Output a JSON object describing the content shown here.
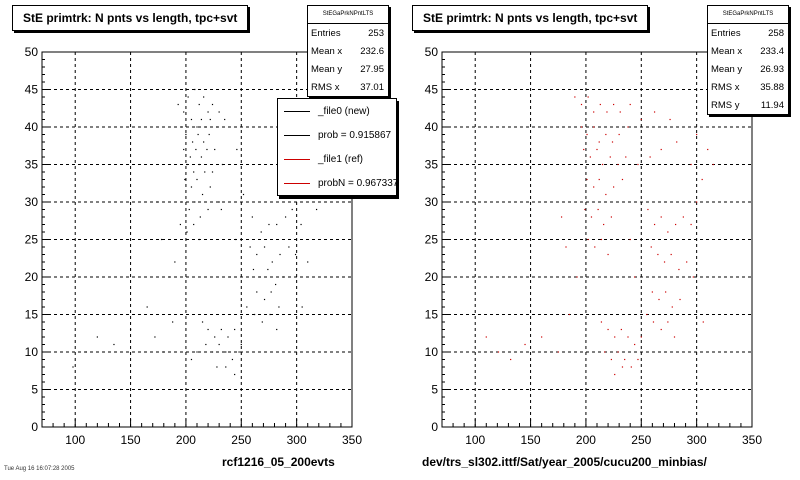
{
  "panels": [
    {
      "title": "StE primtrk: N pnts vs length, tpc+svt",
      "stats": {
        "name": "StEGaPrkNPntLTS",
        "rows": [
          {
            "label": "Entries",
            "value": "253"
          },
          {
            "label": "Mean x",
            "value": "232.6"
          },
          {
            "label": "Mean y",
            "value": "27.95"
          },
          {
            "label": "RMS x",
            "value": "37.01"
          }
        ]
      },
      "legend": [
        {
          "label": "_file0 (new)",
          "color": "#000000"
        },
        {
          "label": "prob = 0.915867",
          "color": "#000000"
        },
        {
          "label": "_file1 (ref)",
          "color": "#cc0000"
        },
        {
          "label": "probN = 0.967337",
          "color": "#cc0000"
        }
      ],
      "footer": "rcf1216_05_200evts"
    },
    {
      "title": "StE primtrk: N pnts vs length, tpc+svt",
      "stats": {
        "name": "StEGaPrkNPntLTS",
        "rows": [
          {
            "label": "Entries",
            "value": "258"
          },
          {
            "label": "Mean x",
            "value": "233.4"
          },
          {
            "label": "Mean y",
            "value": "26.93"
          },
          {
            "label": "RMS x",
            "value": "35.88"
          },
          {
            "label": "RMS y",
            "value": "11.94"
          }
        ]
      },
      "footer": "dev/trs_sl302.ittf/Sat/year_2005/cucu200_minbias/"
    }
  ],
  "corner_note": "Tue Aug 16 16:07:28 2005",
  "chart_data": [
    {
      "type": "scatter",
      "title": "StE primtrk: N pnts vs length, tpc+svt",
      "xlabel": "",
      "ylabel": "",
      "xlim": [
        70,
        350
      ],
      "ylim": [
        0,
        50
      ],
      "xticks": [
        100,
        150,
        200,
        250,
        300,
        350
      ],
      "yticks": [
        0,
        5,
        10,
        15,
        20,
        25,
        30,
        35,
        40,
        45,
        50
      ],
      "grid": true,
      "series": [
        {
          "color": "#000000",
          "points": [
            [
              193,
              43
            ],
            [
              198,
              42
            ],
            [
              202,
              44
            ],
            [
              208,
              45
            ],
            [
              212,
              43
            ],
            [
              216,
              44
            ],
            [
              220,
              42
            ],
            [
              224,
              43
            ],
            [
              230,
              42
            ],
            [
              205,
              41
            ],
            [
              210,
              40
            ],
            [
              214,
              41
            ],
            [
              218,
              40
            ],
            [
              222,
              41
            ],
            [
              196,
              40
            ],
            [
              200,
              39
            ],
            [
              206,
              38
            ],
            [
              211,
              39
            ],
            [
              216,
              38
            ],
            [
              221,
              39
            ],
            [
              228,
              40
            ],
            [
              235,
              41
            ],
            [
              198,
              37
            ],
            [
              204,
              36
            ],
            [
              209,
              37
            ],
            [
              214,
              36
            ],
            [
              219,
              37
            ],
            [
              226,
              37
            ],
            [
              201,
              35
            ],
            [
              207,
              34
            ],
            [
              212,
              35
            ],
            [
              217,
              34
            ],
            [
              224,
              34
            ],
            [
              233,
              35
            ],
            [
              246,
              37
            ],
            [
              199,
              33
            ],
            [
              205,
              32
            ],
            [
              210,
              33
            ],
            [
              215,
              31
            ],
            [
              222,
              32
            ],
            [
              196,
              30
            ],
            [
              203,
              29
            ],
            [
              208,
              30
            ],
            [
              213,
              28
            ],
            [
              220,
              29
            ],
            [
              230,
              30
            ],
            [
              195,
              27
            ],
            [
              201,
              26
            ],
            [
              207,
              27
            ],
            [
              212,
              25
            ],
            [
              232,
              29
            ],
            [
              252,
              31
            ],
            [
              260,
              28
            ],
            [
              268,
              26
            ],
            [
              275,
              27
            ],
            [
              282,
              27
            ],
            [
              290,
              28
            ],
            [
              296,
              29
            ],
            [
              304,
              27
            ],
            [
              258,
              24
            ],
            [
              264,
              23
            ],
            [
              271,
              24
            ],
            [
              278,
              22
            ],
            [
              285,
              23
            ],
            [
              293,
              24
            ],
            [
              299,
              23
            ],
            [
              261,
              21
            ],
            [
              267,
              20
            ],
            [
              274,
              21
            ],
            [
              281,
              19
            ],
            [
              288,
              20
            ],
            [
              264,
              18
            ],
            [
              271,
              17
            ],
            [
              277,
              18
            ],
            [
              284,
              16
            ],
            [
              255,
              16
            ],
            [
              262,
              15
            ],
            [
              269,
              14
            ],
            [
              276,
              15
            ],
            [
              282,
              13
            ],
            [
              215,
              14
            ],
            [
              220,
              13
            ],
            [
              226,
              12
            ],
            [
              232,
              13
            ],
            [
              238,
              12
            ],
            [
              244,
              13
            ],
            [
              250,
              11
            ],
            [
              218,
              11
            ],
            [
              224,
              10
            ],
            [
              230,
              11
            ],
            [
              236,
              10
            ],
            [
              242,
              9
            ],
            [
              248,
              10
            ],
            [
              228,
              8
            ],
            [
              236,
              8
            ],
            [
              244,
              7
            ],
            [
              210,
              10
            ],
            [
              205,
              9
            ],
            [
              120,
              12
            ],
            [
              135,
              11
            ],
            [
              150,
              13
            ],
            [
              165,
              16
            ],
            [
              172,
              12
            ],
            [
              180,
              10
            ],
            [
              188,
              14
            ],
            [
              98,
              8
            ],
            [
              110,
              10
            ],
            [
              185,
              20
            ],
            [
              178,
              25
            ],
            [
              174,
              30
            ],
            [
              190,
              22
            ],
            [
              240,
              20
            ],
            [
              245,
              25
            ],
            [
              290,
              36
            ],
            [
              298,
              32
            ],
            [
              306,
              38
            ],
            [
              314,
              34
            ],
            [
              318,
              29
            ],
            [
              310,
              22
            ],
            [
              305,
              16
            ]
          ]
        }
      ]
    },
    {
      "type": "scatter",
      "title": "StE primtrk: N pnts vs length, tpc+svt",
      "xlabel": "",
      "ylabel": "",
      "xlim": [
        70,
        350
      ],
      "ylim": [
        0,
        50
      ],
      "xticks": [
        100,
        150,
        200,
        250,
        300,
        350
      ],
      "yticks": [
        0,
        5,
        10,
        15,
        20,
        25,
        30,
        35,
        40,
        45,
        50
      ],
      "grid": true,
      "series": [
        {
          "color": "#cc0000",
          "points": [
            [
              190,
              44
            ],
            [
              196,
              43
            ],
            [
              202,
              44
            ],
            [
              207,
              42
            ],
            [
              213,
              43
            ],
            [
              219,
              42
            ],
            [
              225,
              43
            ],
            [
              231,
              42
            ],
            [
              240,
              43
            ],
            [
              250,
              41
            ],
            [
              262,
              42
            ],
            [
              276,
              41
            ],
            [
              196,
              40
            ],
            [
              201,
              39
            ],
            [
              207,
              40
            ],
            [
              212,
              38
            ],
            [
              218,
              39
            ],
            [
              224,
              38
            ],
            [
              230,
              39
            ],
            [
              238,
              40
            ],
            [
              198,
              37
            ],
            [
              204,
              36
            ],
            [
              210,
              37
            ],
            [
              215,
              35
            ],
            [
              222,
              36
            ],
            [
              229,
              35
            ],
            [
              236,
              36
            ],
            [
              201,
              33
            ],
            [
              207,
              32
            ],
            [
              212,
              33
            ],
            [
              218,
              31
            ],
            [
              225,
              32
            ],
            [
              233,
              33
            ],
            [
              247,
              35
            ],
            [
              258,
              36
            ],
            [
              268,
              37
            ],
            [
              282,
              38
            ],
            [
              300,
              39
            ],
            [
              305,
              33
            ],
            [
              310,
              37
            ],
            [
              315,
              35
            ],
            [
              199,
              29
            ],
            [
              205,
              28
            ],
            [
              211,
              29
            ],
            [
              216,
              27
            ],
            [
              223,
              28
            ],
            [
              202,
              25
            ],
            [
              208,
              24
            ],
            [
              214,
              25
            ],
            [
              220,
              23
            ],
            [
              256,
              29
            ],
            [
              262,
              27
            ],
            [
              268,
              28
            ],
            [
              274,
              26
            ],
            [
              281,
              27
            ],
            [
              288,
              28
            ],
            [
              295,
              27
            ],
            [
              259,
              24
            ],
            [
              265,
              23
            ],
            [
              271,
              22
            ],
            [
              277,
              23
            ],
            [
              284,
              21
            ],
            [
              291,
              22
            ],
            [
              297,
              20
            ],
            [
              260,
              18
            ],
            [
              266,
              17
            ],
            [
              272,
              18
            ],
            [
              278,
              16
            ],
            [
              285,
              17
            ],
            [
              255,
              15
            ],
            [
              261,
              14
            ],
            [
              268,
              13
            ],
            [
              274,
              14
            ],
            [
              280,
              12
            ],
            [
              214,
              14
            ],
            [
              220,
              13
            ],
            [
              226,
              12
            ],
            [
              232,
              13
            ],
            [
              238,
              12
            ],
            [
              244,
              11
            ],
            [
              250,
              12
            ],
            [
              217,
              10
            ],
            [
              223,
              9
            ],
            [
              229,
              10
            ],
            [
              235,
              9
            ],
            [
              241,
              8
            ],
            [
              247,
              9
            ],
            [
              226,
              7
            ],
            [
              233,
              8
            ],
            [
              121,
              10
            ],
            [
              132,
              9
            ],
            [
              145,
              11
            ],
            [
              160,
              12
            ],
            [
              175,
              10
            ],
            [
              185,
              15
            ],
            [
              110,
              12
            ],
            [
              192,
              20
            ],
            [
              182,
              24
            ],
            [
              178,
              28
            ],
            [
              244,
              20
            ],
            [
              240,
              25
            ],
            [
              300,
              30
            ],
            [
              295,
              35
            ],
            [
              306,
              14
            ]
          ]
        }
      ]
    }
  ]
}
